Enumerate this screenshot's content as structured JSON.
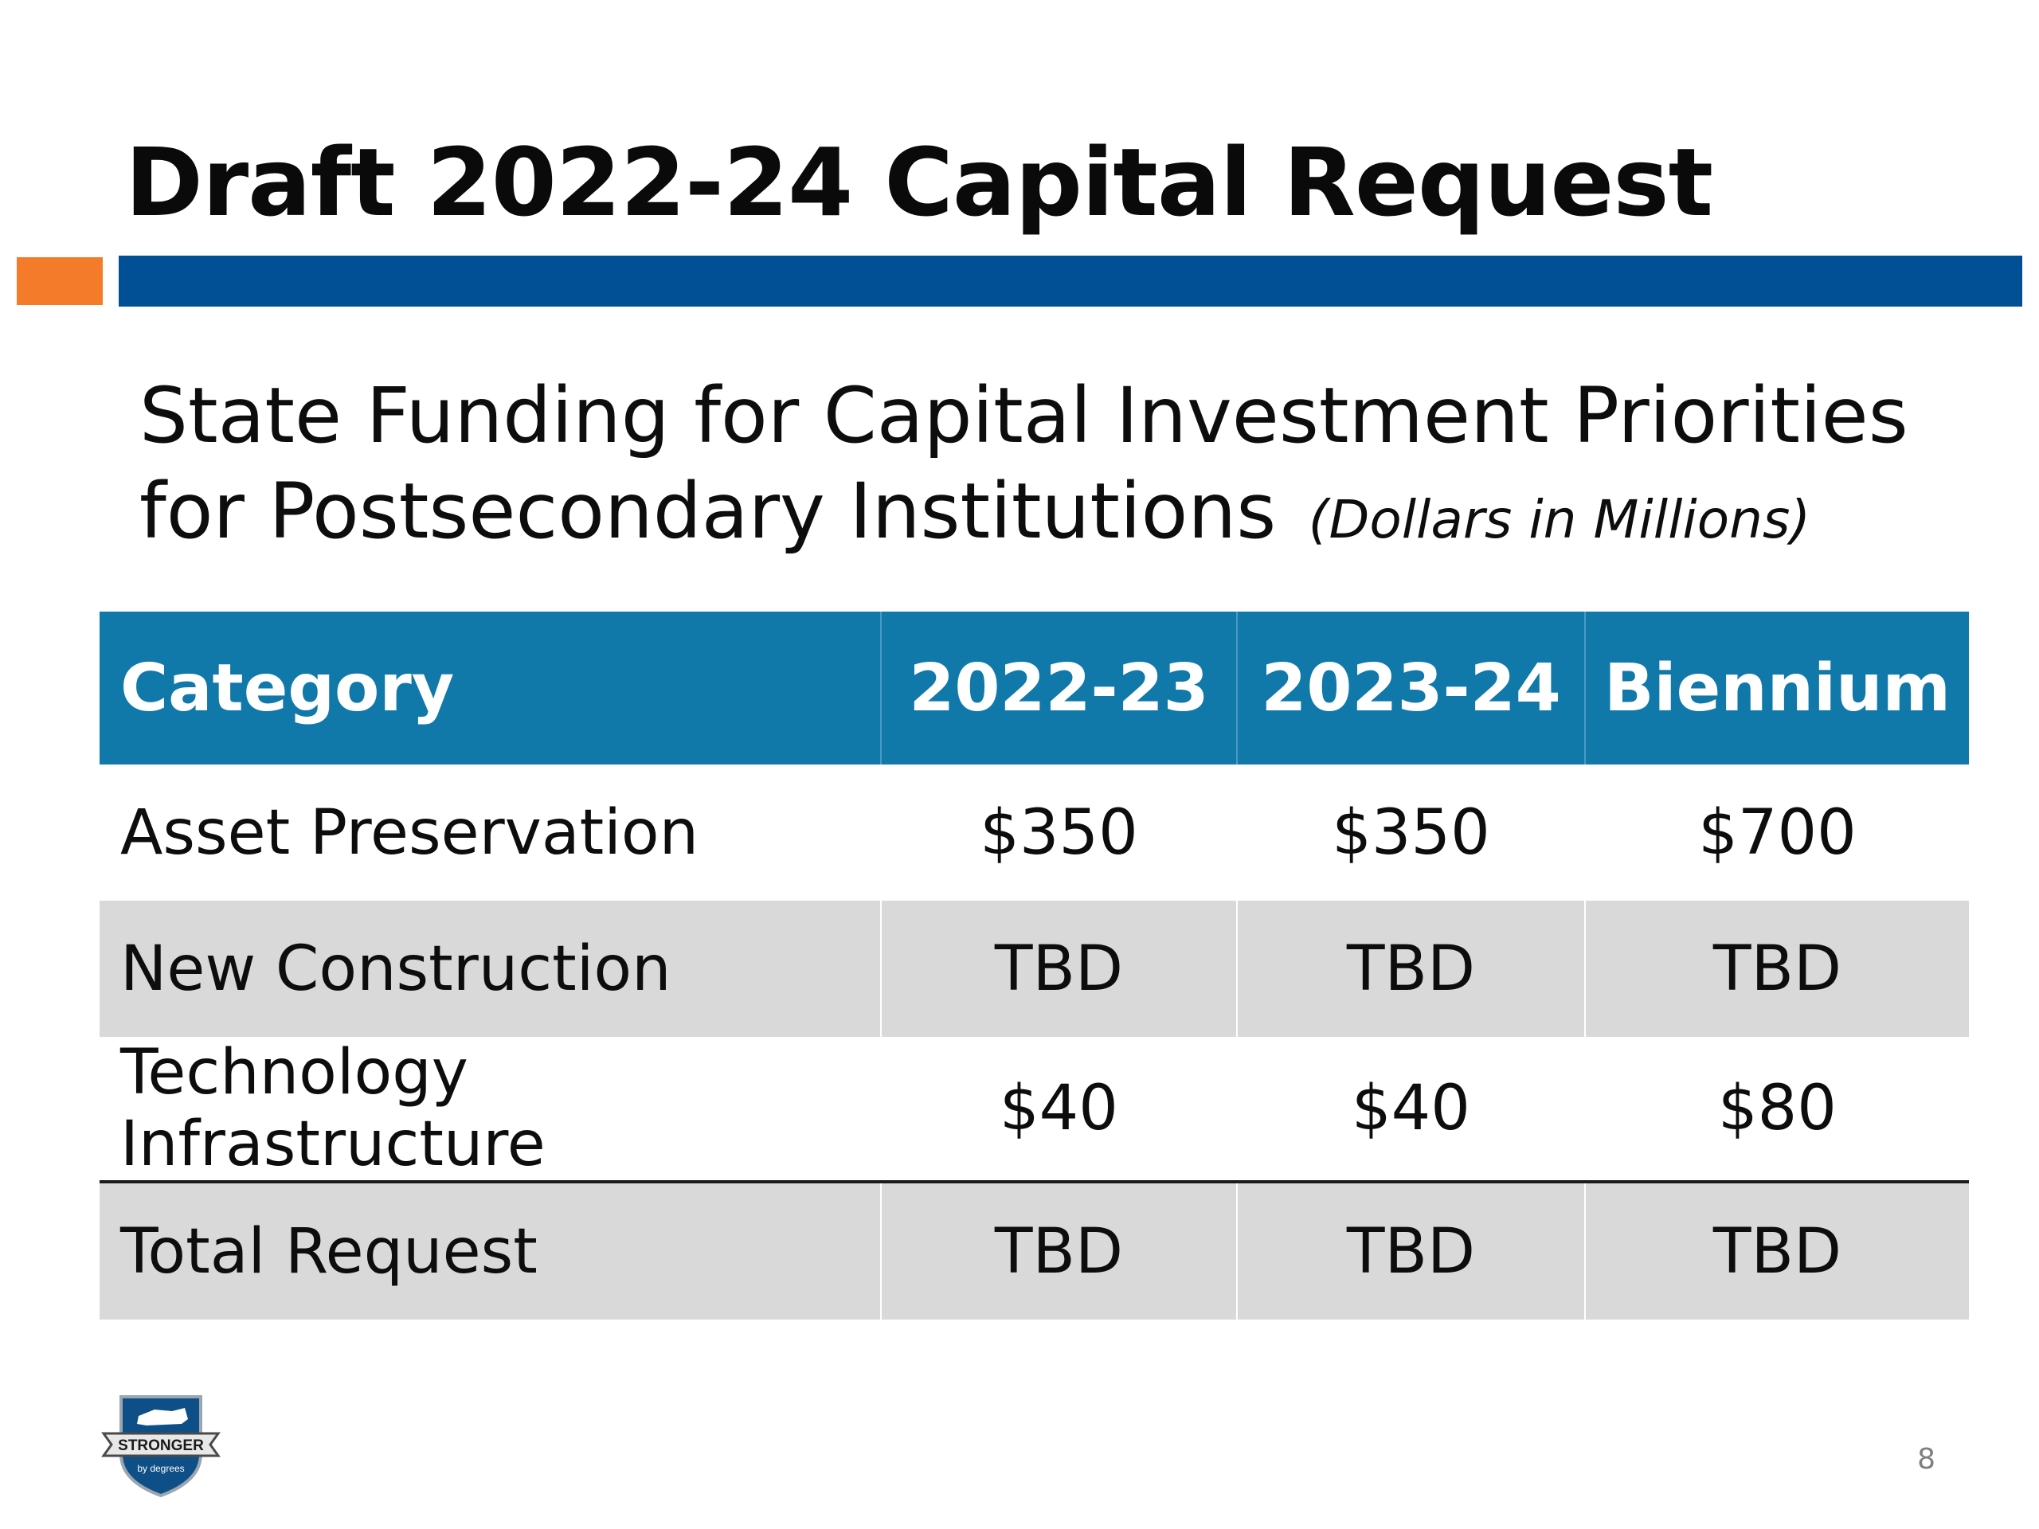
{
  "slide": {
    "title": "Draft 2022-24 Capital Request",
    "subtitle": "State Funding for Capital Investment Priorities for Postsecondary Institutions",
    "subtitle_note": "(Dollars in Millions)",
    "page_number": "8",
    "accent_colors": {
      "orange": "#f47b2a",
      "blue": "#015095",
      "table_header": "#1178aa"
    }
  },
  "table": {
    "headers": [
      "Category",
      "2022-23",
      "2023-24",
      "Biennium"
    ],
    "rows": [
      [
        "Asset Preservation",
        "$350",
        "$350",
        "$700"
      ],
      [
        "New Construction",
        "TBD",
        "TBD",
        "TBD"
      ],
      [
        "Technology Infrastructure",
        "$40",
        "$40",
        "$80"
      ],
      [
        "Total Request",
        "TBD",
        "TBD",
        "TBD"
      ]
    ]
  },
  "logo": {
    "icon": "kentucky-shield-logo",
    "text": "STRONGER",
    "tagline": "by degrees"
  }
}
